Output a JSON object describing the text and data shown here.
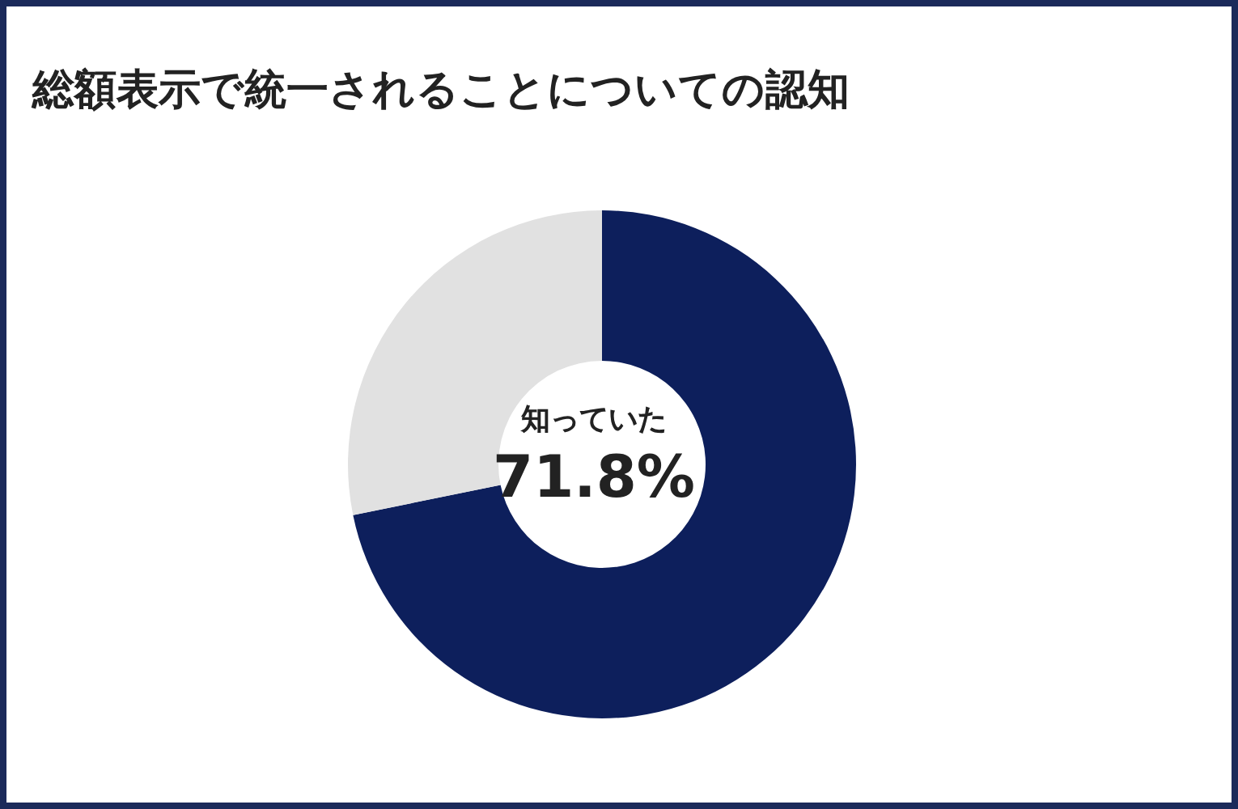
{
  "chart_data": {
    "type": "donut",
    "title": "総額表示で統一されることについての認知",
    "categories": [
      "知っていた",
      null
    ],
    "values": [
      71.8,
      28.2
    ],
    "colors": [
      "#0d1f5c",
      "#e1e1e1"
    ],
    "value_labels": [
      "71.8%",
      null
    ],
    "legend": false
  }
}
